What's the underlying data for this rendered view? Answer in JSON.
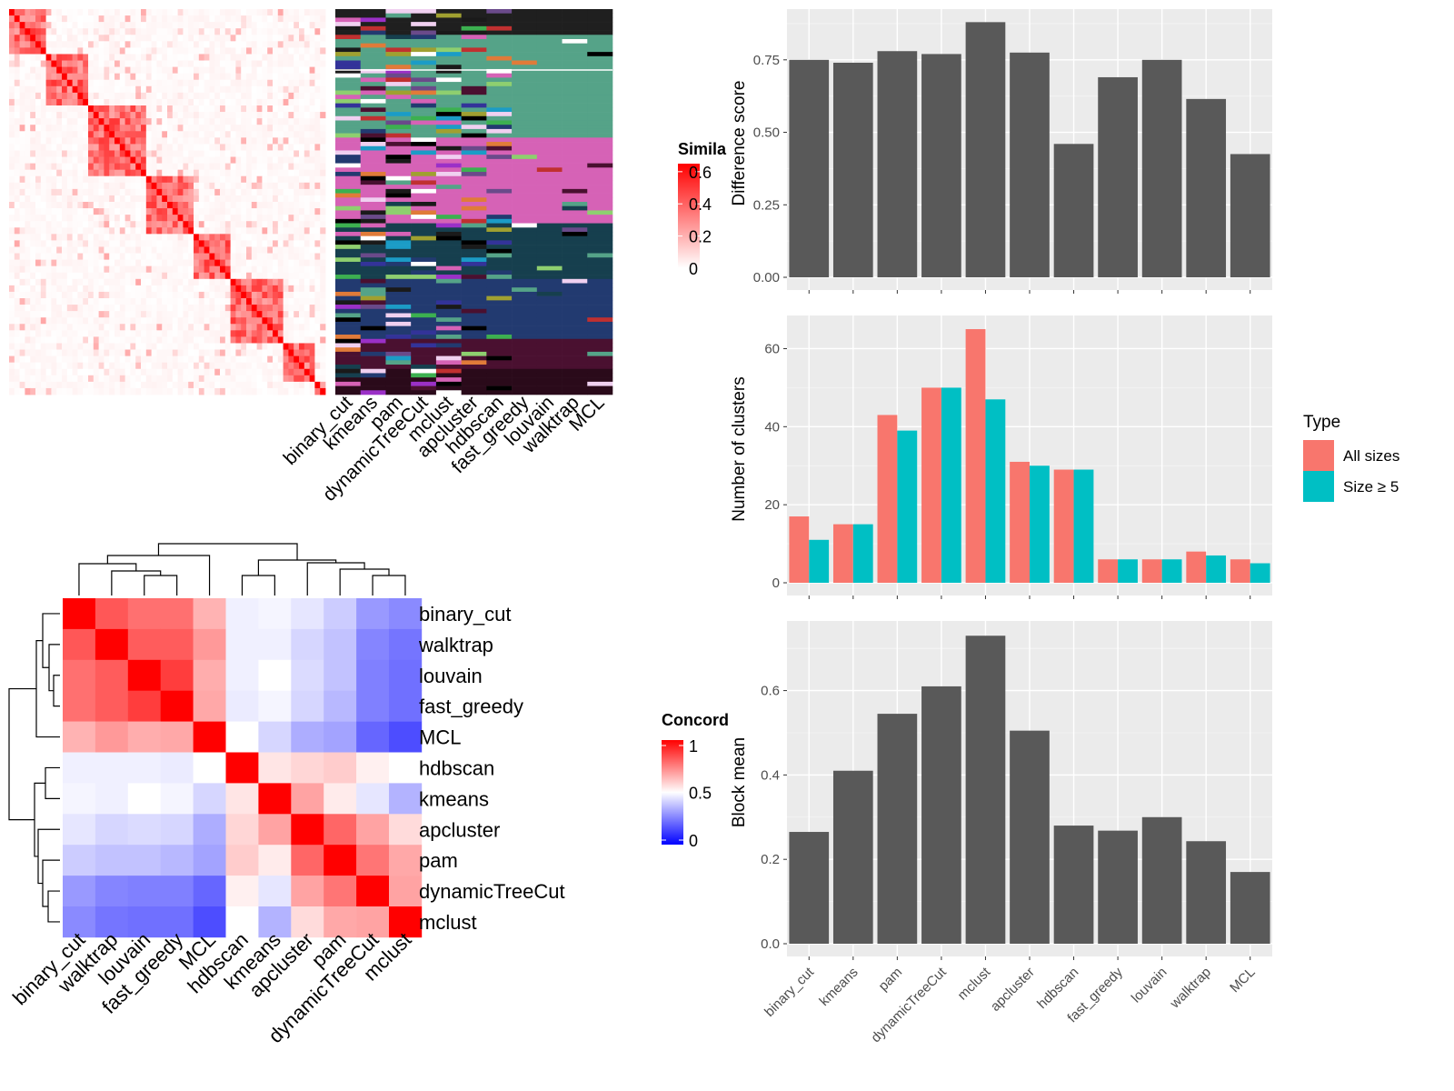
{
  "colors": {
    "panel_bg": "#ebebeb",
    "bar_fill": "#595959",
    "all_sizes": "#f8766d",
    "size_ge5": "#00bfc4",
    "axis_text": "#4d4d4d",
    "sim_high": "#ff0000",
    "conc_low": "#0000ff",
    "conc_mid": "#ffffff",
    "conc_high": "#ff0000"
  },
  "similarity_heatmap": {
    "legend_title": "Simila",
    "legend_ticks": [
      "0.6",
      "0.4",
      "0.2",
      "0"
    ],
    "legend_values": [
      0.6,
      0.4,
      0.2,
      0
    ],
    "block_sizes": [
      28,
      30,
      42,
      35,
      30,
      38,
      22,
      8
    ],
    "column_labels": [
      "binary_cut",
      "kmeans",
      "pam",
      "dynamicTreeCut",
      "mclust",
      "apcluster",
      "hdbscan",
      "fast_greedy",
      "louvain",
      "walktrap",
      "MCL"
    ]
  },
  "concordance_heatmap": {
    "legend_title": "Concord",
    "legend_ticks": [
      "1",
      "0.5",
      "0"
    ],
    "legend_values": [
      1,
      0.5,
      0
    ],
    "row_labels": [
      "binary_cut",
      "walktrap",
      "louvain",
      "fast_greedy",
      "MCL",
      "hdbscan",
      "kmeans",
      "apcluster",
      "pam",
      "dynamicTreeCut",
      "mclust"
    ],
    "col_labels": [
      "binary_cut",
      "walktrap",
      "louvain",
      "fast_greedy",
      "MCL",
      "hdbscan",
      "kmeans",
      "apcluster",
      "pam",
      "dynamicTreeCut",
      "mclust"
    ],
    "matrix": [
      [
        1.0,
        0.83,
        0.78,
        0.78,
        0.65,
        0.47,
        0.48,
        0.45,
        0.4,
        0.3,
        0.27
      ],
      [
        0.83,
        1.0,
        0.82,
        0.82,
        0.7,
        0.47,
        0.47,
        0.42,
        0.38,
        0.26,
        0.23
      ],
      [
        0.78,
        0.82,
        1.0,
        0.88,
        0.66,
        0.47,
        0.5,
        0.43,
        0.38,
        0.25,
        0.22
      ],
      [
        0.78,
        0.82,
        0.88,
        1.0,
        0.67,
        0.46,
        0.48,
        0.42,
        0.36,
        0.25,
        0.22
      ],
      [
        0.65,
        0.7,
        0.66,
        0.67,
        1.0,
        0.5,
        0.42,
        0.34,
        0.32,
        0.2,
        0.15
      ],
      [
        0.47,
        0.47,
        0.47,
        0.46,
        0.5,
        1.0,
        0.55,
        0.58,
        0.6,
        0.53,
        0.5
      ],
      [
        0.48,
        0.47,
        0.5,
        0.48,
        0.42,
        0.55,
        1.0,
        0.68,
        0.54,
        0.45,
        0.35
      ],
      [
        0.45,
        0.42,
        0.43,
        0.42,
        0.34,
        0.58,
        0.68,
        1.0,
        0.8,
        0.68,
        0.57
      ],
      [
        0.4,
        0.38,
        0.38,
        0.36,
        0.32,
        0.6,
        0.54,
        0.8,
        1.0,
        0.77,
        0.67
      ],
      [
        0.3,
        0.26,
        0.25,
        0.25,
        0.2,
        0.53,
        0.45,
        0.68,
        0.77,
        1.0,
        0.68
      ],
      [
        0.27,
        0.23,
        0.22,
        0.22,
        0.15,
        0.5,
        0.35,
        0.57,
        0.67,
        0.68,
        1.0
      ]
    ]
  },
  "chart_data": [
    {
      "type": "bar",
      "categories": [
        "binary_cut",
        "kmeans",
        "pam",
        "dynamicTreeCut",
        "mclust",
        "apcluster",
        "hdbscan",
        "fast_greedy",
        "louvain",
        "walktrap",
        "MCL"
      ],
      "values": [
        0.75,
        0.74,
        0.78,
        0.77,
        0.88,
        0.775,
        0.46,
        0.69,
        0.75,
        0.615,
        0.425
      ],
      "ylabel": "Difference score",
      "yticks": [
        "0.75",
        "0.50",
        "0.25",
        "0.00"
      ],
      "ytick_values": [
        0.75,
        0.5,
        0.25,
        0
      ],
      "ylim": [
        0,
        0.925
      ]
    },
    {
      "type": "bar",
      "categories": [
        "binary_cut",
        "kmeans",
        "pam",
        "dynamicTreeCut",
        "mclust",
        "apcluster",
        "hdbscan",
        "fast_greedy",
        "louvain",
        "walktrap",
        "MCL"
      ],
      "series": [
        {
          "name": "All sizes",
          "values": [
            17,
            15,
            43,
            50,
            65,
            31,
            29,
            6,
            6,
            8,
            6
          ]
        },
        {
          "name": "Size ≥ 5",
          "values": [
            11,
            15,
            39,
            50,
            47,
            30,
            29,
            6,
            6,
            7,
            5
          ]
        }
      ],
      "ylabel": "Number of clusters",
      "yticks": [
        "60",
        "40",
        "20",
        "0"
      ],
      "ytick_values": [
        60,
        40,
        20,
        0
      ],
      "ylim": [
        0,
        68.5
      ],
      "legend_title": "Type",
      "legend_position": "right"
    },
    {
      "type": "bar",
      "categories": [
        "binary_cut",
        "kmeans",
        "pam",
        "dynamicTreeCut",
        "mclust",
        "apcluster",
        "hdbscan",
        "fast_greedy",
        "louvain",
        "walktrap",
        "MCL"
      ],
      "values": [
        0.265,
        0.41,
        0.545,
        0.61,
        0.73,
        0.505,
        0.28,
        0.268,
        0.3,
        0.243,
        0.17
      ],
      "ylabel": "Block mean",
      "yticks": [
        "0.6",
        "0.4",
        "0.2",
        "0.0"
      ],
      "ytick_values": [
        0.6,
        0.4,
        0.2,
        0
      ],
      "ylim": [
        0,
        0.765
      ]
    }
  ]
}
